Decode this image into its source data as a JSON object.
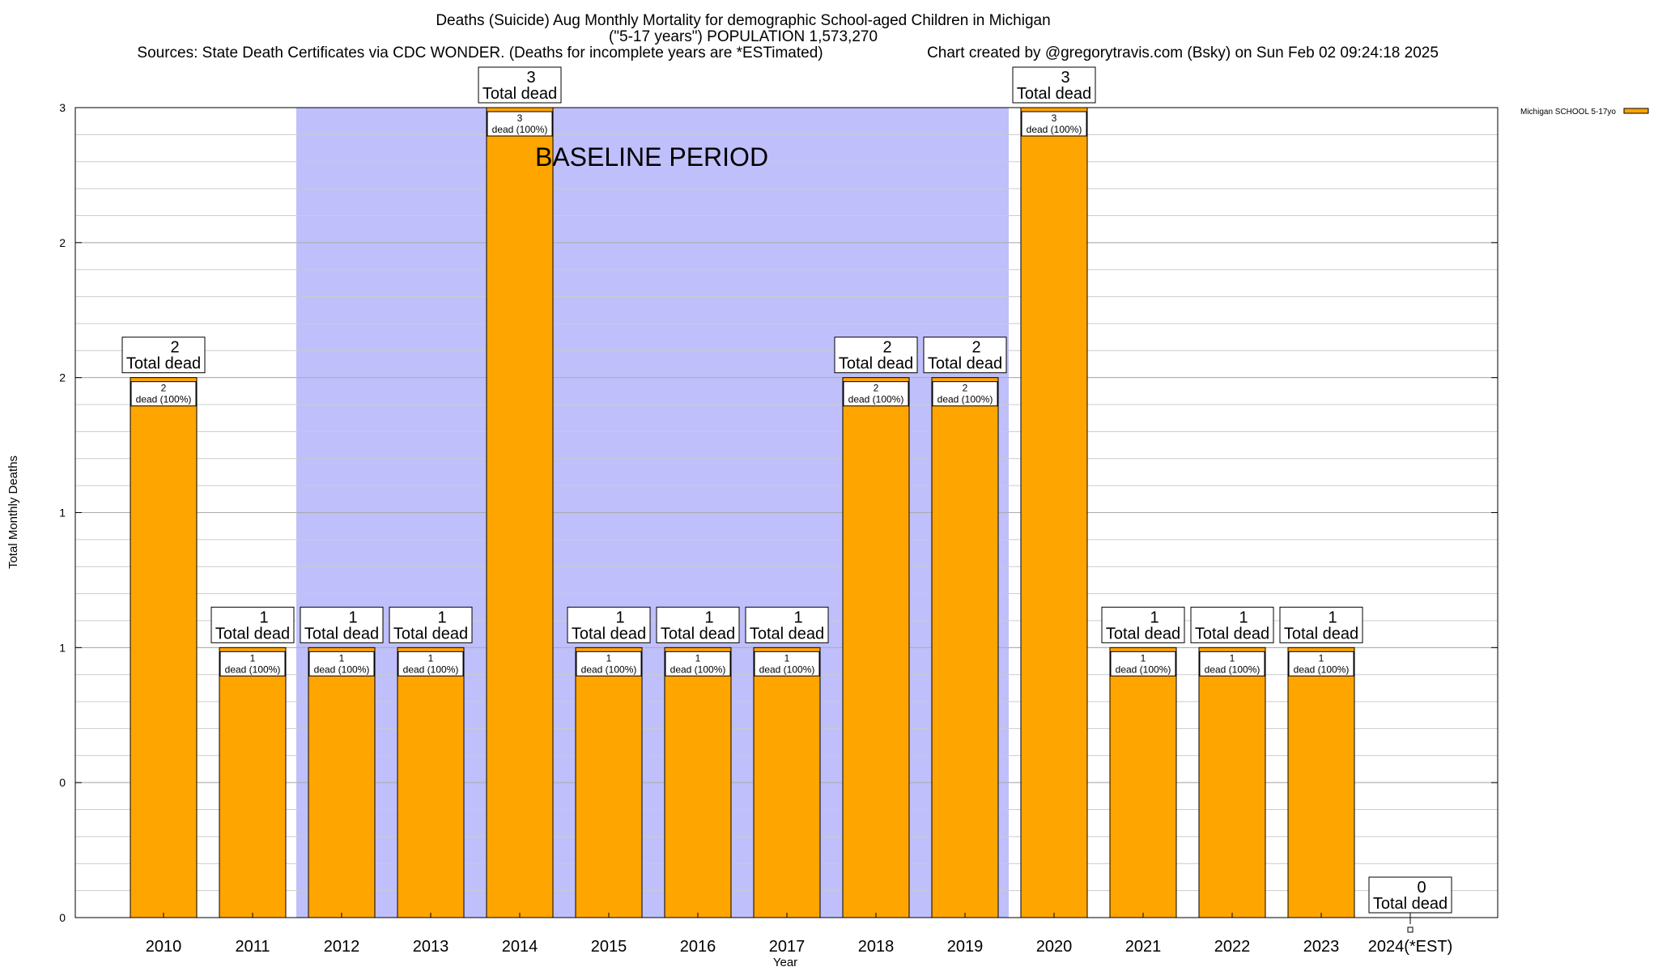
{
  "chart_data": {
    "type": "bar",
    "title": "Deaths (Suicide) Aug Monthly Mortality for demographic School-aged Children in Michigan",
    "subtitle": "(\"5-17 years\") POPULATION 1,573,270",
    "sources": "Sources: State Death Certificates via CDC WONDER. (Deaths for incomplete years are *ESTimated)",
    "credit": "Chart created by @gregorytravis.com (Bsky) on Sun Feb 02 09:24:18 2025",
    "xlabel": "Year",
    "ylabel": "Total Monthly Deaths",
    "categories": [
      "2010",
      "2011",
      "2012",
      "2013",
      "2014",
      "2015",
      "2016",
      "2017",
      "2018",
      "2019",
      "2020",
      "2021",
      "2022",
      "2023",
      "2024(*EST)"
    ],
    "series": [
      {
        "name": "Michigan SCHOOL 5-17yo",
        "values": [
          2,
          1,
          1,
          1,
          3,
          1,
          1,
          1,
          2,
          2,
          3,
          1,
          1,
          1,
          0
        ]
      }
    ],
    "total_labels": [
      "2",
      "1",
      "1",
      "1",
      "3",
      "1",
      "1",
      "1",
      "2",
      "2",
      "3",
      "1",
      "1",
      "1",
      "0"
    ],
    "total_suffix": "Total dead",
    "inner_labels": [
      "2",
      "1",
      "1",
      "1",
      "3",
      "1",
      "1",
      "1",
      "2",
      "2",
      "3",
      "1",
      "1",
      "1",
      ""
    ],
    "inner_suffix": "dead (100%)",
    "ylim": [
      0,
      3
    ],
    "yticks": [
      0,
      0.5,
      1,
      1.5,
      2,
      2.5,
      3
    ],
    "ytick_labels": [
      "0",
      "0",
      "1",
      "1",
      "2",
      "2",
      "3"
    ],
    "grid": true,
    "baseline": {
      "label": "BASELINE PERIOD",
      "from": "2012",
      "to": "2019"
    },
    "legend_position": "top-right",
    "colors": {
      "bar": "#ffa500",
      "bar_top": "#ffa500",
      "baseline": "#bfbffb",
      "grid": "#cccccc"
    }
  }
}
